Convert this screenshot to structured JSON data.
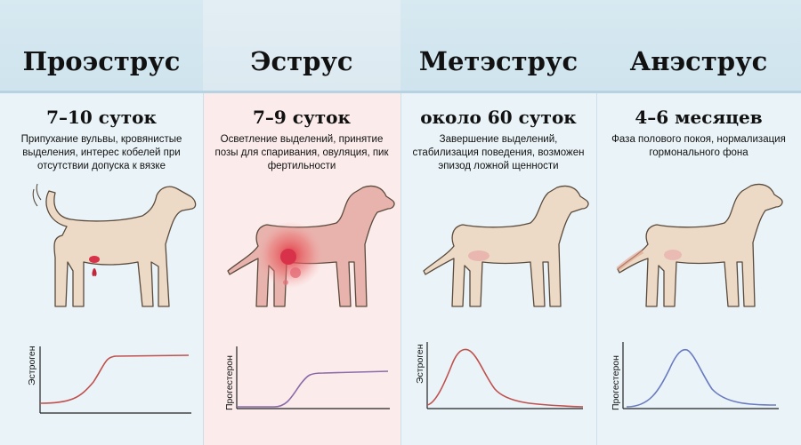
{
  "phases": [
    {
      "name": "Проэструс",
      "duration": "7–10 суток",
      "description": "Припухание вульвы,  кровянистые выделения, интерес кобелей при отсутствии допуска к вязке",
      "hormone_label": "Эстроген",
      "curve_color": "#c0504d"
    },
    {
      "name": "Эструс",
      "duration": "7–9 суток",
      "description": "Осветление выделений, принятие позы для спаривания, овуляция, пик фертильности",
      "hormone_label": "Прогестерон",
      "curve_color": "#8a6aa8"
    },
    {
      "name": "Метэструс",
      "duration": "около 60 суток",
      "description": "Завершение выделений, стабилизация поведения, возможен эпизод ложной щенности",
      "hormone_label": "Эстроген",
      "curve_color": "#c0504d"
    },
    {
      "name": "Анэструс",
      "duration": "4–6 месяцев",
      "description": "Фаза полового покоя, нормализация гормонального фона",
      "hormone_label": "Прогестерон",
      "curve_color": "#6a7ac0"
    }
  ],
  "colors": {
    "header_bg": "#d7e9f1",
    "page_bg": "#eaf4f8",
    "estrus_highlight": "#fbeceb",
    "dog_fill": "#ecd9c6",
    "accent_red": "#d8324a"
  }
}
